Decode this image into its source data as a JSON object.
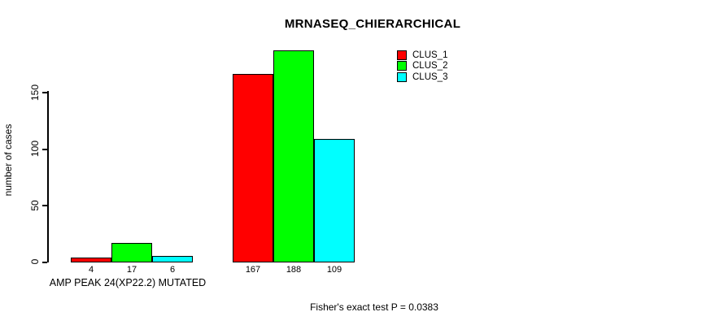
{
  "title": "MRNASEQ_CHIERARCHICAL",
  "footer": {
    "text": "Fisher's exact test P = 0.0383"
  },
  "axis": {
    "ylabel": "number of cases",
    "yticks": [
      0,
      50,
      100,
      150
    ]
  },
  "legend": {
    "items": [
      {
        "label": "CLUS_1",
        "color": "#ff0000"
      },
      {
        "label": "CLUS_2",
        "color": "#00ff00"
      },
      {
        "label": "CLUS_3",
        "color": "#00ffff"
      }
    ]
  },
  "chart_data": {
    "type": "bar",
    "title": "MRNASEQ_CHIERARCHICAL",
    "xlabel": "",
    "ylabel": "number of cases",
    "ylim": [
      0,
      150
    ],
    "yticks": [
      0,
      50,
      100,
      150
    ],
    "grid": false,
    "legend_position": "top-right",
    "categories": [
      "AMP PEAK 24(XP22.2) MUTATED",
      ""
    ],
    "series": [
      {
        "name": "CLUS_1",
        "color": "#ff0000",
        "values": [
          4,
          167
        ]
      },
      {
        "name": "CLUS_2",
        "color": "#00ff00",
        "values": [
          17,
          188
        ]
      },
      {
        "name": "CLUS_3",
        "color": "#00ffff",
        "values": [
          6,
          109
        ]
      }
    ],
    "bar_value_labels": [
      [
        4,
        17,
        6
      ],
      [
        167,
        188,
        109
      ]
    ],
    "annotation": "Fisher's exact test P = 0.0383"
  }
}
